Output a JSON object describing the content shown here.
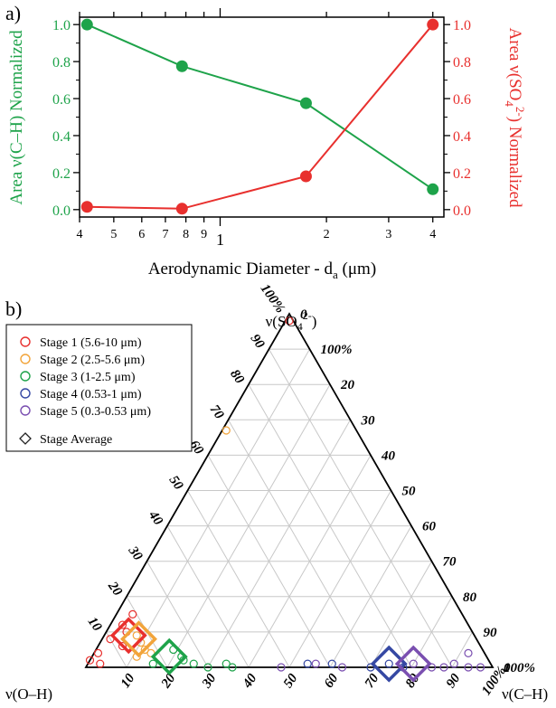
{
  "panel_labels": {
    "a": "a)",
    "b": "b)"
  },
  "chart_data": [
    {
      "type": "line",
      "xscale": "log",
      "xlim": [
        0.4,
        4.3
      ],
      "x_tick_labels": [
        "4",
        "5",
        "6",
        "7",
        "8",
        "9",
        "1",
        "2",
        "3",
        "4"
      ],
      "x_tick_values": [
        0.4,
        0.5,
        0.6,
        0.7,
        0.8,
        0.9,
        1,
        2,
        3,
        4
      ],
      "xlabel_main": "Aerodynamic Diameter - d",
      "xlabel_sub": "a",
      "xlabel_unit": " (μm)",
      "ylabel_left": "Area ν(C–H) Normalized",
      "ylabel_right_pre": "Area ν(SO",
      "ylabel_right_sub": "4",
      "ylabel_right_sup": "2-",
      "ylabel_right_post": ") Normalized",
      "ylim": [
        -0.04,
        1.04
      ],
      "y_tick_labels": [
        "0.0",
        "0.2",
        "0.4",
        "0.6",
        "0.8",
        "1.0"
      ],
      "y_tick_values": [
        0,
        0.2,
        0.4,
        0.6,
        0.8,
        1.0
      ],
      "left_color": "#1ea34a",
      "right_color": "#e8302e",
      "grid": false,
      "series": [
        {
          "axis": "left",
          "color": "#1ea34a",
          "x": [
            0.42,
            0.78,
            1.75,
            4.0
          ],
          "values": [
            1.0,
            0.775,
            0.575,
            0.11
          ]
        },
        {
          "axis": "right",
          "color": "#e8302e",
          "x": [
            0.42,
            0.78,
            1.75,
            4.0
          ],
          "values": [
            0.015,
            0.005,
            0.18,
            1.0
          ]
        }
      ]
    },
    {
      "type": "scatter",
      "subtype": "ternary",
      "axes": {
        "top_pre": "ν(SO",
        "top_sub": "4",
        "top_sup": "2-",
        "top_post": ")",
        "left": "ν(O–H)",
        "right": "ν(C–H)"
      },
      "tick_labels": [
        "10",
        "20",
        "30",
        "40",
        "50",
        "60",
        "70",
        "80",
        "90",
        "100%"
      ],
      "tick_values": [
        10,
        20,
        30,
        40,
        50,
        60,
        70,
        80,
        90,
        100
      ],
      "zero_label": "0",
      "grid": true,
      "legend_position": "top-left",
      "legend": [
        {
          "label": "Stage 1 (5.6-10 μm)",
          "color": "#e8302e",
          "marker": "circle"
        },
        {
          "label": "Stage 2 (2.5-5.6 μm)",
          "color": "#f2a43a",
          "marker": "circle"
        },
        {
          "label": "Stage 3 (1-2.5 μm)",
          "color": "#1ea34a",
          "marker": "circle"
        },
        {
          "label": "Stage 4 (0.53-1 μm)",
          "color": "#3548a3",
          "marker": "circle"
        },
        {
          "label": "Stage 5 (0.3-0.53 μm)",
          "color": "#7a4fb0",
          "marker": "circle"
        },
        {
          "label": "Stage Average",
          "color": "#222222",
          "marker": "diamond"
        }
      ],
      "points": [
        {
          "series": 0,
          "so4": 98,
          "ch": 1
        },
        {
          "series": 0,
          "so4": 15,
          "ch": 4
        },
        {
          "series": 0,
          "so4": 12,
          "ch": 3
        },
        {
          "series": 0,
          "so4": 10,
          "ch": 5
        },
        {
          "series": 0,
          "so4": 8,
          "ch": 2
        },
        {
          "series": 0,
          "so4": 6,
          "ch": 6
        },
        {
          "series": 0,
          "so4": 4,
          "ch": 1
        },
        {
          "series": 0,
          "so4": 2,
          "ch": 0
        },
        {
          "series": 0,
          "so4": 1,
          "ch": 3
        },
        {
          "series": 1,
          "so4": 67,
          "ch": 1
        },
        {
          "series": 1,
          "so4": 9,
          "ch": 8
        },
        {
          "series": 1,
          "so4": 7,
          "ch": 10
        },
        {
          "series": 1,
          "so4": 5,
          "ch": 12
        },
        {
          "series": 1,
          "so4": 3,
          "ch": 11
        },
        {
          "series": 1,
          "so4": 4,
          "ch": 14
        },
        {
          "series": 2,
          "so4": 5,
          "ch": 19
        },
        {
          "series": 2,
          "so4": 3,
          "ch": 22
        },
        {
          "series": 2,
          "so4": 2,
          "ch": 23
        },
        {
          "series": 2,
          "so4": 1,
          "ch": 26
        },
        {
          "series": 2,
          "so4": 0,
          "ch": 30
        },
        {
          "series": 2,
          "so4": 1,
          "ch": 34
        },
        {
          "series": 2,
          "so4": 0,
          "ch": 36
        },
        {
          "series": 2,
          "so4": 1,
          "ch": 16
        },
        {
          "series": 3,
          "so4": 1,
          "ch": 54
        },
        {
          "series": 3,
          "so4": 1,
          "ch": 60
        },
        {
          "series": 3,
          "so4": 0,
          "ch": 70
        },
        {
          "series": 3,
          "so4": 1,
          "ch": 74
        },
        {
          "series": 3,
          "so4": 0,
          "ch": 78
        },
        {
          "series": 4,
          "so4": 0,
          "ch": 48
        },
        {
          "series": 4,
          "so4": 1,
          "ch": 56
        },
        {
          "series": 4,
          "so4": 0,
          "ch": 63
        },
        {
          "series": 4,
          "so4": 1,
          "ch": 80
        },
        {
          "series": 4,
          "so4": 0,
          "ch": 85
        },
        {
          "series": 4,
          "so4": 0,
          "ch": 88
        },
        {
          "series": 4,
          "so4": 1,
          "ch": 90
        },
        {
          "series": 4,
          "so4": 0,
          "ch": 94
        },
        {
          "series": 4,
          "so4": 0,
          "ch": 97
        },
        {
          "series": 4,
          "so4": 4,
          "ch": 92
        }
      ],
      "averages": [
        {
          "series": 0,
          "so4": 9,
          "ch": 6
        },
        {
          "series": 1,
          "so4": 8,
          "ch": 9
        },
        {
          "series": 2,
          "so4": 3,
          "ch": 19
        },
        {
          "series": 3,
          "so4": 1,
          "ch": 74
        },
        {
          "series": 4,
          "so4": 1,
          "ch": 80
        }
      ]
    }
  ]
}
